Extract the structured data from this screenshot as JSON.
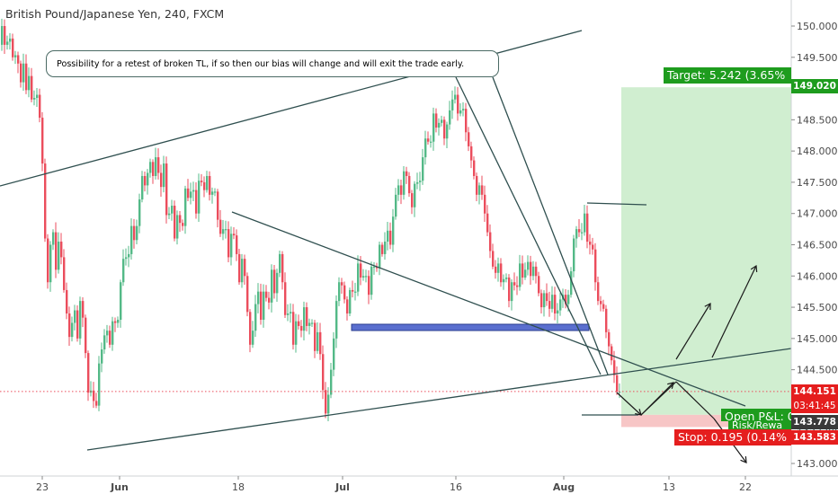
{
  "header": {
    "title": "British Pound/Japanese Yen, 240, FXCM"
  },
  "annotation": {
    "text": "Possibility for a retest of broken TL, if so then our bias will change and will exit the trade early."
  },
  "position": {
    "target_label": "Target: 5.242 (3.65%",
    "stop_label": "Stop: 0.195 (0.14%",
    "pnl_label": "Open P&L: 0",
    "rr_label": "Risk/Rewa"
  },
  "price_tags": {
    "target": "149.020",
    "last": "144.151",
    "countdown": "03:41:45",
    "entry": "143.778",
    "stop": "143.583"
  },
  "colors": {
    "up": "#53b987",
    "down": "#eb4d5c",
    "trendline": "#2f4f4f",
    "target_zone": "#c8ebc8",
    "stop_zone": "#f7c6c6",
    "green_tag": "#1e9c1e",
    "red_tag": "#e51e1e",
    "support_box": "#5a6fcf"
  },
  "chart_data": {
    "type": "candlestick",
    "symbol": "British Pound/Japanese Yen",
    "timeframe": "240",
    "source": "FXCM",
    "ylim": [
      142.9,
      150.4
    ],
    "y_ticks": [
      "143.000",
      "143.500",
      "144.000",
      "144.500",
      "145.000",
      "145.500",
      "146.000",
      "146.500",
      "147.000",
      "147.500",
      "148.000",
      "148.500",
      "149.000",
      "149.500",
      "150.000"
    ],
    "x_ticks": [
      {
        "label": "23",
        "bold": false
      },
      {
        "label": "Jun",
        "bold": true
      },
      {
        "label": "18",
        "bold": false
      },
      {
        "label": "Jul",
        "bold": true
      },
      {
        "label": "16",
        "bold": false
      },
      {
        "label": "Aug",
        "bold": true
      },
      {
        "label": "13",
        "bold": false
      },
      {
        "label": "22",
        "bold": false
      }
    ],
    "price_path": [
      [
        0,
        149.6
      ],
      [
        4,
        150.0
      ],
      [
        8,
        149.6
      ],
      [
        12,
        149.9
      ],
      [
        17,
        149.4
      ],
      [
        20,
        149.6
      ],
      [
        25,
        149.1
      ],
      [
        28,
        149.4
      ],
      [
        30,
        148.9
      ],
      [
        34,
        149.2
      ],
      [
        38,
        148.7
      ],
      [
        42,
        149.0
      ],
      [
        45,
        148.7
      ],
      [
        48,
        148.2
      ],
      [
        52,
        146.6
      ],
      [
        55,
        145.9
      ],
      [
        60,
        146.9
      ],
      [
        64,
        146.1
      ],
      [
        68,
        146.7
      ],
      [
        72,
        145.9
      ],
      [
        76,
        145.4
      ],
      [
        80,
        144.9
      ],
      [
        84,
        145.6
      ],
      [
        88,
        145.0
      ],
      [
        92,
        145.8
      ],
      [
        95,
        145.1
      ],
      [
        98,
        144.6
      ],
      [
        101,
        143.9
      ],
      [
        104,
        144.3
      ],
      [
        108,
        143.7
      ],
      [
        112,
        144.6
      ],
      [
        116,
        144.9
      ],
      [
        120,
        145.2
      ],
      [
        124,
        144.9
      ],
      [
        128,
        145.4
      ],
      [
        132,
        145.1
      ],
      [
        136,
        145.9
      ],
      [
        140,
        146.4
      ],
      [
        144,
        146.2
      ],
      [
        148,
        146.8
      ],
      [
        152,
        146.5
      ],
      [
        156,
        147.1
      ],
      [
        160,
        147.6
      ],
      [
        164,
        147.4
      ],
      [
        168,
        147.9
      ],
      [
        172,
        147.6
      ],
      [
        176,
        148.0
      ],
      [
        180,
        147.3
      ],
      [
        184,
        147.8
      ],
      [
        188,
        146.7
      ],
      [
        192,
        147.3
      ],
      [
        196,
        146.6
      ],
      [
        200,
        147.1
      ],
      [
        204,
        146.6
      ],
      [
        208,
        147.4
      ],
      [
        212,
        147.2
      ],
      [
        216,
        147.5
      ],
      [
        220,
        147.0
      ],
      [
        224,
        147.7
      ],
      [
        228,
        147.3
      ],
      [
        232,
        147.6
      ],
      [
        236,
        147.2
      ],
      [
        240,
        147.5
      ],
      [
        244,
        146.9
      ],
      [
        248,
        146.6
      ],
      [
        252,
        146.9
      ],
      [
        256,
        146.3
      ],
      [
        260,
        146.8
      ],
      [
        264,
        146.5
      ],
      [
        268,
        145.9
      ],
      [
        272,
        146.4
      ],
      [
        276,
        145.6
      ],
      [
        280,
        144.9
      ],
      [
        284,
        145.2
      ],
      [
        288,
        145.9
      ],
      [
        292,
        145.3
      ],
      [
        296,
        145.9
      ],
      [
        300,
        145.4
      ],
      [
        304,
        146.1
      ],
      [
        308,
        145.6
      ],
      [
        312,
        146.5
      ],
      [
        316,
        145.9
      ],
      [
        320,
        145.2
      ],
      [
        324,
        145.6
      ],
      [
        328,
        144.9
      ],
      [
        332,
        145.4
      ],
      [
        336,
        145.0
      ],
      [
        340,
        145.5
      ],
      [
        344,
        145.1
      ],
      [
        348,
        145.4
      ],
      [
        352,
        144.8
      ],
      [
        356,
        145.2
      ],
      [
        360,
        144.3
      ],
      [
        364,
        143.8
      ],
      [
        368,
        144.2
      ],
      [
        372,
        144.8
      ],
      [
        376,
        145.6
      ],
      [
        380,
        146.0
      ],
      [
        384,
        145.7
      ],
      [
        388,
        145.4
      ],
      [
        392,
        145.9
      ],
      [
        396,
        145.6
      ],
      [
        400,
        146.2
      ],
      [
        404,
        145.9
      ],
      [
        408,
        146.1
      ],
      [
        412,
        145.7
      ],
      [
        416,
        146.3
      ],
      [
        420,
        146.0
      ],
      [
        424,
        146.5
      ],
      [
        428,
        146.3
      ],
      [
        432,
        146.8
      ],
      [
        436,
        146.5
      ],
      [
        440,
        147.1
      ],
      [
        444,
        147.5
      ],
      [
        448,
        147.3
      ],
      [
        452,
        147.8
      ],
      [
        456,
        147.4
      ],
      [
        460,
        147.1
      ],
      [
        464,
        147.6
      ],
      [
        468,
        147.4
      ],
      [
        472,
        147.9
      ],
      [
        476,
        148.3
      ],
      [
        480,
        148.0
      ],
      [
        484,
        148.6
      ],
      [
        488,
        148.3
      ],
      [
        492,
        148.6
      ],
      [
        496,
        148.2
      ],
      [
        500,
        148.5
      ],
      [
        504,
        148.8
      ],
      [
        508,
        148.9
      ],
      [
        512,
        148.5
      ],
      [
        516,
        148.8
      ],
      [
        520,
        148.3
      ],
      [
        524,
        148.0
      ],
      [
        528,
        147.7
      ],
      [
        532,
        147.3
      ],
      [
        536,
        147.5
      ],
      [
        540,
        147.1
      ],
      [
        544,
        146.7
      ],
      [
        548,
        146.3
      ],
      [
        552,
        146.0
      ],
      [
        556,
        146.2
      ],
      [
        560,
        145.8
      ],
      [
        564,
        146.1
      ],
      [
        568,
        145.6
      ],
      [
        572,
        146.0
      ],
      [
        576,
        145.7
      ],
      [
        580,
        146.2
      ],
      [
        584,
        145.9
      ],
      [
        588,
        146.3
      ],
      [
        592,
        146.0
      ],
      [
        596,
        146.2
      ],
      [
        600,
        145.8
      ],
      [
        604,
        145.5
      ],
      [
        608,
        145.8
      ],
      [
        612,
        145.4
      ],
      [
        616,
        145.7
      ],
      [
        620,
        145.3
      ],
      [
        624,
        145.6
      ],
      [
        628,
        145.7
      ],
      [
        632,
        145.5
      ],
      [
        636,
        145.9
      ],
      [
        640,
        146.6
      ],
      [
        644,
        146.8
      ],
      [
        648,
        146.6
      ],
      [
        652,
        147.0
      ],
      [
        656,
        146.4
      ],
      [
        660,
        146.6
      ],
      [
        664,
        145.9
      ],
      [
        668,
        145.5
      ],
      [
        672,
        145.6
      ],
      [
        676,
        145.1
      ],
      [
        680,
        144.8
      ],
      [
        684,
        144.5
      ],
      [
        688,
        144.15
      ]
    ],
    "price_line": 144.151,
    "long_position": {
      "entry": 143.778,
      "target": 149.02,
      "stop": 143.583
    }
  }
}
